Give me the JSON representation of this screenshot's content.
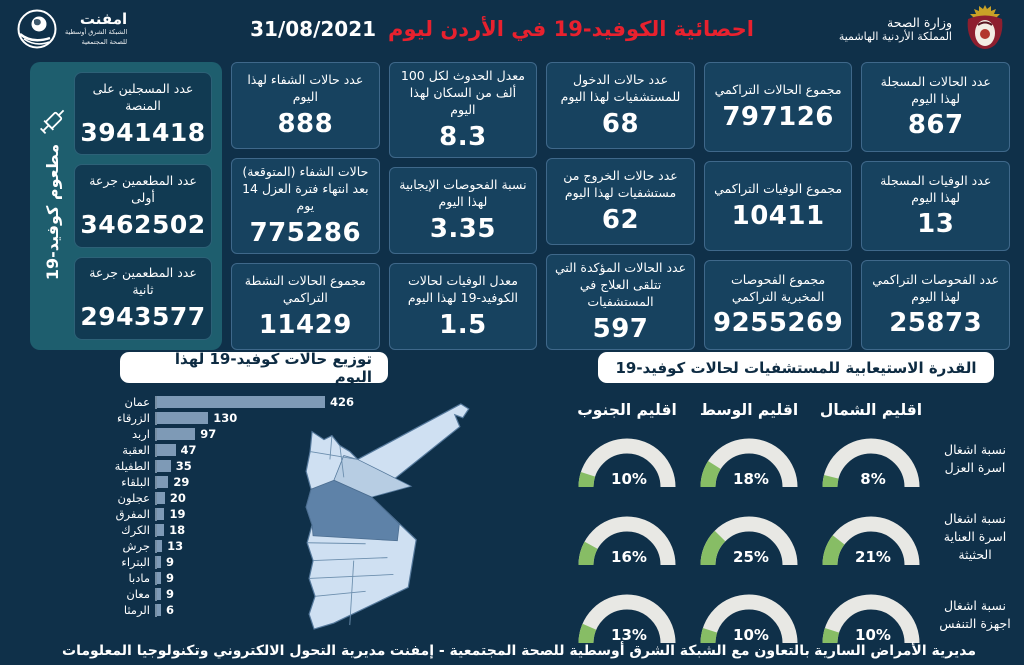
{
  "header": {
    "title_ar": "احصائية الكوفيد-19 في الأردن ليوم",
    "date": "31/08/2021",
    "ministry": {
      "line1": "وزارة الصحة",
      "line2": "المملكة الأردنية الهاشمية"
    },
    "emphnet": {
      "name": "امفنت",
      "sub1": "الشبكة الشرق أوسطية",
      "sub2": "للصحة المجتمعية"
    }
  },
  "stats": {
    "columns": [
      {
        "cards": [
          {
            "label": "عدد الحالات المسجلة لهذا اليوم",
            "value": "867"
          },
          {
            "label": "عدد الوفيات المسجلة لهذا اليوم",
            "value": "13"
          },
          {
            "label": "عدد الفحوصات التراكمي لهذا اليوم",
            "value": "25873"
          }
        ]
      },
      {
        "cards": [
          {
            "label": "مجموع الحالات التراكمي",
            "value": "797126"
          },
          {
            "label": "مجموع الوفيات التراكمي",
            "value": "10411"
          },
          {
            "label": "مجموع الفحوصات المخبرية التراكمي",
            "value": "9255269"
          }
        ]
      },
      {
        "cards": [
          {
            "label": "عدد حالات الدخول للمستشفيات لهذا اليوم",
            "value": "68"
          },
          {
            "label": "عدد حالات الخروج من مستشفيات لهذا اليوم",
            "value": "62"
          },
          {
            "label": "عدد الحالات المؤكدة التي تتلقى العلاج في المستشفيات",
            "value": "597"
          }
        ]
      },
      {
        "cards": [
          {
            "label": "معدل الحدوث لكل 100 ألف من السكان لهذا اليوم",
            "value": "8.3"
          },
          {
            "label": "نسبة الفحوصات الإيجابية لهذا اليوم",
            "value": "3.35"
          },
          {
            "label": "معدل الوفيات لحالات الكوفيد-19 لهذا اليوم",
            "value": "1.5"
          }
        ]
      },
      {
        "cards": [
          {
            "label": "عدد حالات الشفاء لهذا اليوم",
            "value": "888"
          },
          {
            "label": "حالات الشفاء (المتوقعة) بعد انتهاء فترة العزل 14 يوم",
            "value": "775286"
          },
          {
            "label": "مجموع الحالات النشطة التراكمي",
            "value": "11429"
          }
        ]
      }
    ]
  },
  "vaccination": {
    "vertical_label": "مطعوم كوفيد-19",
    "cards": [
      {
        "label": "عدد المسجلين على المنصة",
        "value": "3941418"
      },
      {
        "label": "عدد المطعمين جرعة أولى",
        "value": "3462502"
      },
      {
        "label": "عدد المطعمين جرعة ثانية",
        "value": "2943577"
      }
    ]
  },
  "chart_data": [
    {
      "type": "bar",
      "orientation": "horizontal",
      "title": "توزيع حالات كوفيد-19 لهذا اليوم",
      "categories": [
        "عمان",
        "الزرقاء",
        "اربد",
        "العقبة",
        "الطفيلة",
        "البلقاء",
        "عجلون",
        "المفرق",
        "الكرك",
        "جرش",
        "البتراء",
        "مادبا",
        "معان",
        "الرمثا"
      ],
      "values": [
        426,
        130,
        97,
        47,
        35,
        29,
        20,
        19,
        18,
        13,
        9,
        9,
        9,
        6
      ],
      "bar_color": "#7e9ab6",
      "xlim": [
        0,
        450
      ],
      "grid": false,
      "value_labels": true
    },
    {
      "type": "gauge-grid",
      "title": "القدرة الاستيعابية للمستشفيات لحالات كوفيد-19",
      "columns": [
        "اقليم الشمال",
        "اقليم الوسط",
        "اقليم الجنوب"
      ],
      "rows": [
        {
          "label": "نسبة اشغال اسرة العزل",
          "values": [
            8,
            18,
            10
          ]
        },
        {
          "label": "نسبة اشغال اسرة العناية الحثيثة",
          "values": [
            21,
            25,
            16
          ]
        },
        {
          "label": "نسبة اشغال اجهزة التنفس",
          "values": [
            10,
            10,
            13
          ]
        }
      ],
      "unit": "%",
      "range": [
        0,
        100
      ],
      "arc_color": "#e8e8e4",
      "fill_color": "#87bd65"
    }
  ],
  "map": {
    "name": "خريطة الأردن",
    "highlight": "عمان"
  },
  "footer": {
    "right": "مديرية الأمراض السارية",
    "center": "بالتعاون مع الشبكة الشرق أوسطية للصحة المجتمعية - إمفنت",
    "left": "مديرية التحول الالكتروني وتكنولوجيا المعلومات"
  },
  "colors": {
    "background": "#0f3049",
    "card": "#17425f",
    "sidebar": "#1e5e6e",
    "title_red": "#e8212e",
    "bar": "#7e9ab6",
    "gauge_green": "#87bd65",
    "gauge_base": "#e8e8e4",
    "map_light": "#cfe0f2",
    "map_dark": "#5e82a8"
  }
}
